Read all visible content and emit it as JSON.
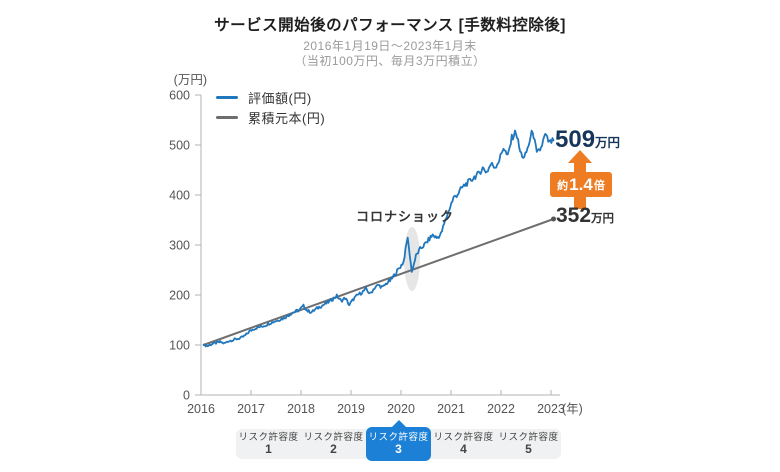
{
  "header": {
    "title": "サービス開始後のパフォーマンス [手数料控除後]",
    "subtitle1": "2016年1月19日〜2023年1月末",
    "subtitle2": "（当初100万円、毎月3万円積立）"
  },
  "axes": {
    "y_unit": "(万円)",
    "x_unit": "(年)",
    "y_ticks": [
      0,
      100,
      200,
      300,
      400,
      500,
      600
    ],
    "x_ticks": [
      "2016",
      "2017",
      "2018",
      "2019",
      "2020",
      "2021",
      "2022",
      "2023"
    ]
  },
  "legend": {
    "items": [
      {
        "label": "評価額(円)",
        "color": "#2077bd"
      },
      {
        "label": "累積元本(円)",
        "color": "#6e6e6e"
      }
    ]
  },
  "annotations": {
    "corona": "コロナショック",
    "value_callout": {
      "number": "509",
      "unit": "万円"
    },
    "multiplier_badge": {
      "prefix": "約",
      "value": "1.4",
      "suffix": "倍"
    },
    "principal_callout": {
      "number": "352",
      "unit": "万円"
    }
  },
  "tabs": {
    "active_index": 2,
    "items": [
      {
        "label": "リスク許容度",
        "number": "1"
      },
      {
        "label": "リスク許容度",
        "number": "2"
      },
      {
        "label": "リスク許容度",
        "number": "3"
      },
      {
        "label": "リスク許容度",
        "number": "4"
      },
      {
        "label": "リスク許容度",
        "number": "5"
      }
    ]
  },
  "colors": {
    "line_blue": "#2077bd",
    "line_gray": "#6e6e6e",
    "orange": "#ee7c22",
    "navy_text": "#17365c",
    "tab_blue": "#1b80d6",
    "axis": "#b3b3b3",
    "tick_text": "#555555"
  },
  "chart_data": {
    "type": "line",
    "title": "サービス開始後のパフォーマンス [手数料控除後]",
    "xlabel": "(年)",
    "ylabel": "(万円)",
    "x_range": [
      2016,
      2023.1
    ],
    "ylim": [
      0,
      600
    ],
    "grid": false,
    "legend_position": "top-left-inside",
    "series": [
      {
        "name": "評価額(円)",
        "color": "#2077bd",
        "x_start_year": 2016.05,
        "points_per_year": 12,
        "values": [
          100,
          98,
          102,
          104,
          106,
          103,
          108,
          110,
          112,
          114,
          119,
          127,
          132,
          135,
          137,
          140,
          144,
          147,
          150,
          153,
          157,
          163,
          167,
          170,
          178,
          168,
          166,
          172,
          177,
          181,
          186,
          192,
          198,
          188,
          194,
          180,
          192,
          200,
          205,
          212,
          202,
          214,
          220,
          215,
          224,
          230,
          242,
          254,
          266,
          315,
          246,
          278,
          292,
          300,
          310,
          320,
          314,
          322,
          348,
          372,
          394,
          402,
          414,
          422,
          428,
          436,
          442,
          454,
          446,
          462,
          456,
          470,
          496,
          476,
          514,
          527,
          486,
          473,
          499,
          530,
          482,
          494,
          520,
          504,
          509
        ],
        "final_value_label": "509万円"
      },
      {
        "name": "累積元本(円)",
        "color": "#6e6e6e",
        "x": [
          2016.05,
          2023.05
        ],
        "values": [
          100,
          352
        ],
        "final_value_label": "352万円"
      }
    ],
    "annotations": [
      {
        "text": "コロナショック",
        "x": 2020.2,
        "y": 380,
        "note": "drop highlighted with gray ellipse"
      },
      {
        "text": "約1.4倍",
        "style": "orange badge with up arrow between 352万円 and 509万円"
      }
    ]
  }
}
